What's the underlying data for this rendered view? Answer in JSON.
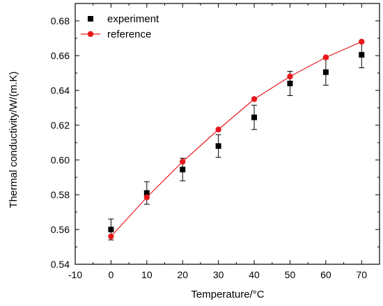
{
  "chart_data": {
    "type": "scatter",
    "xlabel": "Temperature/°C",
    "ylabel": "Thermal conductivity/W/(m.K)",
    "xlim": [
      -10,
      75
    ],
    "ylim": [
      0.54,
      0.69
    ],
    "xticks": [
      "-10",
      "0",
      "10",
      "20",
      "30",
      "40",
      "50",
      "60",
      "70"
    ],
    "yticks": [
      "0.54",
      "0.56",
      "0.58",
      "0.60",
      "0.62",
      "0.64",
      "0.66",
      "0.68"
    ],
    "grid": false,
    "legend_position": "top-left",
    "series": [
      {
        "name": "experiment",
        "marker": "square",
        "color": "#000000",
        "line": false,
        "x": [
          0,
          10,
          20,
          30,
          40,
          50,
          60,
          70
        ],
        "y": [
          0.56,
          0.581,
          0.5945,
          0.608,
          0.6245,
          0.644,
          0.6505,
          0.6605
        ],
        "error": [
          0.006,
          0.0065,
          0.0065,
          0.0065,
          0.007,
          0.007,
          0.0075,
          0.0075
        ]
      },
      {
        "name": "reference",
        "marker": "circle",
        "color": "#e8191e",
        "line": true,
        "x": [
          0,
          10,
          20,
          30,
          40,
          50,
          60,
          70
        ],
        "y": [
          0.556,
          0.5785,
          0.599,
          0.6175,
          0.635,
          0.648,
          0.659,
          0.668
        ]
      }
    ]
  }
}
